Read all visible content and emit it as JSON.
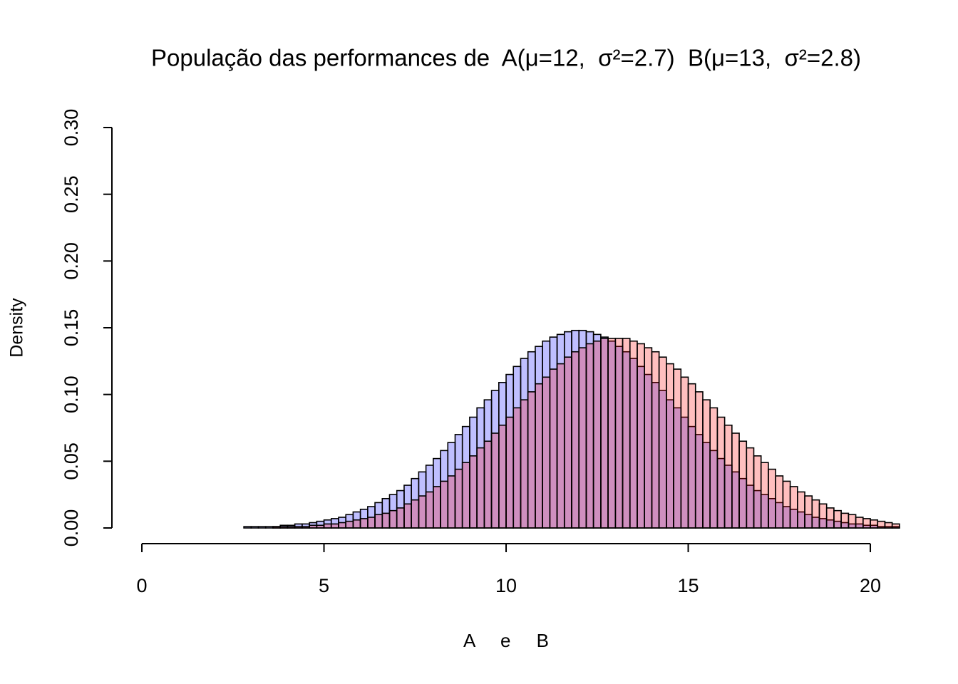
{
  "chart_data": {
    "type": "histogram",
    "title": "População das performances de  A(μ=12,  σ²=2.7)  B(μ=13,  σ²=2.8)",
    "xlabel": "A     e     B",
    "ylabel": "Density",
    "bins": [
      -0.2,
      0,
      0.2,
      0.4,
      0.6,
      0.8,
      1,
      1.2,
      1.4,
      1.6,
      1.8,
      2,
      2.2,
      2.4,
      2.6,
      2.8,
      3,
      3.2,
      3.4,
      3.6,
      3.8,
      4,
      4.2,
      4.4,
      4.6,
      4.8,
      5,
      5.2,
      5.4,
      5.6,
      5.8,
      6,
      6.2,
      6.4,
      6.6,
      6.8,
      7,
      7.2,
      7.4,
      7.6,
      7.8,
      8,
      8.2,
      8.4,
      8.6,
      8.8,
      9,
      9.2,
      9.4,
      9.6,
      9.8,
      10,
      10.2,
      10.4,
      10.6,
      10.8,
      11,
      11.2,
      11.4,
      11.6,
      11.8,
      12,
      12.2,
      12.4,
      12.6,
      12.8,
      13,
      13.2,
      13.4,
      13.6,
      13.8,
      14,
      14.2,
      14.4,
      14.6,
      14.8,
      15,
      15.2,
      15.4,
      15.6,
      15.8,
      16,
      16.2,
      16.4,
      16.6,
      16.8,
      17,
      17.2,
      17.4,
      17.6,
      17.8,
      18,
      18.2,
      18.4,
      18.6,
      18.8,
      19,
      19.2,
      19.4,
      19.6,
      19.8,
      20,
      20.2,
      20.4,
      20.6,
      20.8
    ],
    "series": [
      {
        "color": "rgba(0,0,255,0.25)",
        "values": [
          0,
          0,
          0,
          0,
          0,
          0,
          0,
          0,
          0,
          0,
          0,
          0,
          0,
          0,
          0,
          0.001,
          0.001,
          0.001,
          0.001,
          0.001,
          0.002,
          0.002,
          0.003,
          0.003,
          0.004,
          0.005,
          0.006,
          0.007,
          0.008,
          0.01,
          0.012,
          0.014,
          0.016,
          0.019,
          0.022,
          0.025,
          0.028,
          0.032,
          0.037,
          0.042,
          0.047,
          0.052,
          0.058,
          0.064,
          0.07,
          0.076,
          0.083,
          0.09,
          0.096,
          0.103,
          0.109,
          0.115,
          0.121,
          0.127,
          0.132,
          0.136,
          0.14,
          0.143,
          0.145,
          0.147,
          0.148,
          0.148,
          0.147,
          0.145,
          0.143,
          0.14,
          0.136,
          0.132,
          0.127,
          0.121,
          0.115,
          0.109,
          0.103,
          0.096,
          0.09,
          0.083,
          0.076,
          0.07,
          0.064,
          0.058,
          0.052,
          0.047,
          0.042,
          0.037,
          0.032,
          0.028,
          0.025,
          0.022,
          0.019,
          0.016,
          0.014,
          0.012,
          0.01,
          0.008,
          0.007,
          0.006,
          0.005,
          0.004,
          0.003,
          0.003,
          0.002,
          0.002,
          0.001,
          0.001,
          0.001
        ]
      },
      {
        "color": "rgba(255,0,0,0.25)",
        "values": [
          0,
          0,
          0,
          0,
          0,
          0,
          0,
          0,
          0,
          0,
          0,
          0,
          0,
          0,
          0,
          0,
          0,
          0,
          0,
          0.001,
          0.001,
          0.001,
          0.001,
          0.001,
          0.002,
          0.002,
          0.003,
          0.003,
          0.004,
          0.005,
          0.006,
          0.007,
          0.008,
          0.01,
          0.011,
          0.013,
          0.015,
          0.018,
          0.021,
          0.024,
          0.027,
          0.031,
          0.035,
          0.039,
          0.044,
          0.049,
          0.054,
          0.06,
          0.065,
          0.071,
          0.077,
          0.083,
          0.09,
          0.096,
          0.102,
          0.108,
          0.113,
          0.119,
          0.123,
          0.128,
          0.132,
          0.135,
          0.138,
          0.14,
          0.142,
          0.142,
          0.142,
          0.142,
          0.14,
          0.138,
          0.135,
          0.132,
          0.128,
          0.123,
          0.119,
          0.113,
          0.108,
          0.102,
          0.096,
          0.09,
          0.083,
          0.077,
          0.071,
          0.065,
          0.06,
          0.054,
          0.049,
          0.044,
          0.039,
          0.035,
          0.031,
          0.027,
          0.024,
          0.021,
          0.018,
          0.015,
          0.013,
          0.011,
          0.01,
          0.008,
          0.007,
          0.006,
          0.005,
          0.004,
          0.003
        ]
      }
    ],
    "edgecolor": "#000000",
    "xlim": [
      -0.2,
      20.8
    ],
    "xticks": [
      0,
      5,
      10,
      15,
      20
    ],
    "ylim": [
      0,
      0.3
    ],
    "yticks": [
      {
        "value": 0,
        "label": "0.00"
      },
      0.05,
      {
        "value": 0.1,
        "label": "0.10"
      },
      0.15,
      {
        "value": 0.2,
        "label": "0.20"
      },
      0.25,
      {
        "value": 0.3,
        "label": "0.30"
      }
    ]
  }
}
